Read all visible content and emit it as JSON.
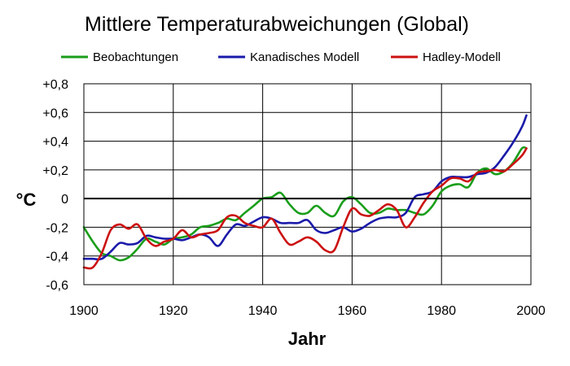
{
  "chart_data": {
    "type": "line",
    "title": "Mittlere Temperaturabweichungen (Global)",
    "xlabel": "Jahr",
    "ylabel": "°C",
    "xlim": [
      1900,
      2000
    ],
    "ylim": [
      -0.6,
      0.8
    ],
    "x_ticks": [
      1900,
      1920,
      1940,
      1960,
      1980,
      2000
    ],
    "y_ticks": [
      {
        "value": 0.8,
        "label": "+0,8"
      },
      {
        "value": 0.6,
        "label": "+0,6"
      },
      {
        "value": 0.4,
        "label": "+0,4"
      },
      {
        "value": 0.2,
        "label": "+0,2"
      },
      {
        "value": 0.0,
        "label": "0"
      },
      {
        "value": -0.2,
        "label": "-0,2"
      },
      {
        "value": -0.4,
        "label": "-0,4"
      },
      {
        "value": -0.6,
        "label": "-0,6"
      }
    ],
    "grid": true,
    "legend_position": "top",
    "series": [
      {
        "name": "Beobachtungen",
        "color": "#1a9e1a",
        "x": [
          1900,
          1902,
          1904,
          1906,
          1908,
          1910,
          1912,
          1914,
          1916,
          1918,
          1920,
          1922,
          1924,
          1926,
          1928,
          1930,
          1932,
          1934,
          1936,
          1938,
          1940,
          1942,
          1944,
          1946,
          1948,
          1950,
          1952,
          1954,
          1956,
          1958,
          1960,
          1962,
          1964,
          1966,
          1968,
          1970,
          1972,
          1974,
          1976,
          1978,
          1980,
          1982,
          1984,
          1986,
          1988,
          1990,
          1992,
          1994,
          1996,
          1998,
          1999
        ],
        "y": [
          -0.2,
          -0.3,
          -0.38,
          -0.4,
          -0.43,
          -0.41,
          -0.35,
          -0.28,
          -0.3,
          -0.32,
          -0.28,
          -0.27,
          -0.25,
          -0.2,
          -0.19,
          -0.17,
          -0.14,
          -0.15,
          -0.1,
          -0.05,
          0.0,
          0.01,
          0.04,
          -0.04,
          -0.1,
          -0.1,
          -0.05,
          -0.1,
          -0.12,
          -0.02,
          0.01,
          -0.04,
          -0.1,
          -0.1,
          -0.07,
          -0.08,
          -0.08,
          -0.1,
          -0.11,
          -0.05,
          0.05,
          0.09,
          0.1,
          0.08,
          0.18,
          0.21,
          0.17,
          0.19,
          0.25,
          0.35,
          0.35
        ]
      },
      {
        "name": "Kanadisches Modell",
        "color": "#1a1aaa",
        "x": [
          1900,
          1902,
          1904,
          1906,
          1908,
          1910,
          1912,
          1914,
          1916,
          1918,
          1920,
          1922,
          1924,
          1926,
          1928,
          1930,
          1932,
          1934,
          1936,
          1938,
          1940,
          1942,
          1944,
          1946,
          1948,
          1950,
          1952,
          1954,
          1956,
          1958,
          1960,
          1962,
          1964,
          1966,
          1968,
          1970,
          1972,
          1974,
          1976,
          1978,
          1980,
          1982,
          1984,
          1986,
          1988,
          1990,
          1992,
          1994,
          1996,
          1998,
          1999
        ],
        "y": [
          -0.42,
          -0.42,
          -0.42,
          -0.37,
          -0.31,
          -0.32,
          -0.31,
          -0.26,
          -0.27,
          -0.28,
          -0.28,
          -0.29,
          -0.27,
          -0.25,
          -0.27,
          -0.33,
          -0.25,
          -0.18,
          -0.19,
          -0.16,
          -0.13,
          -0.14,
          -0.17,
          -0.17,
          -0.17,
          -0.15,
          -0.22,
          -0.24,
          -0.22,
          -0.2,
          -0.23,
          -0.21,
          -0.17,
          -0.14,
          -0.13,
          -0.13,
          -0.1,
          0.01,
          0.03,
          0.05,
          0.12,
          0.15,
          0.15,
          0.15,
          0.17,
          0.18,
          0.22,
          0.3,
          0.39,
          0.5,
          0.58
        ]
      },
      {
        "name": "Hadley-Modell",
        "color": "#cc1111",
        "x": [
          1900,
          1902,
          1904,
          1906,
          1908,
          1910,
          1912,
          1914,
          1916,
          1918,
          1920,
          1922,
          1924,
          1926,
          1928,
          1930,
          1932,
          1934,
          1936,
          1938,
          1940,
          1942,
          1944,
          1946,
          1948,
          1950,
          1952,
          1954,
          1956,
          1958,
          1960,
          1962,
          1964,
          1966,
          1968,
          1970,
          1972,
          1974,
          1976,
          1978,
          1980,
          1982,
          1984,
          1986,
          1988,
          1990,
          1992,
          1994,
          1996,
          1998,
          1999
        ],
        "y": [
          -0.48,
          -0.48,
          -0.38,
          -0.22,
          -0.18,
          -0.21,
          -0.18,
          -0.28,
          -0.33,
          -0.3,
          -0.28,
          -0.22,
          -0.27,
          -0.25,
          -0.24,
          -0.22,
          -0.13,
          -0.12,
          -0.17,
          -0.19,
          -0.2,
          -0.14,
          -0.24,
          -0.32,
          -0.3,
          -0.27,
          -0.3,
          -0.36,
          -0.36,
          -0.2,
          -0.07,
          -0.11,
          -0.12,
          -0.08,
          -0.04,
          -0.08,
          -0.2,
          -0.13,
          -0.03,
          0.05,
          0.09,
          0.14,
          0.14,
          0.12,
          0.18,
          0.19,
          0.2,
          0.19,
          0.24,
          0.3,
          0.35
        ]
      }
    ]
  }
}
